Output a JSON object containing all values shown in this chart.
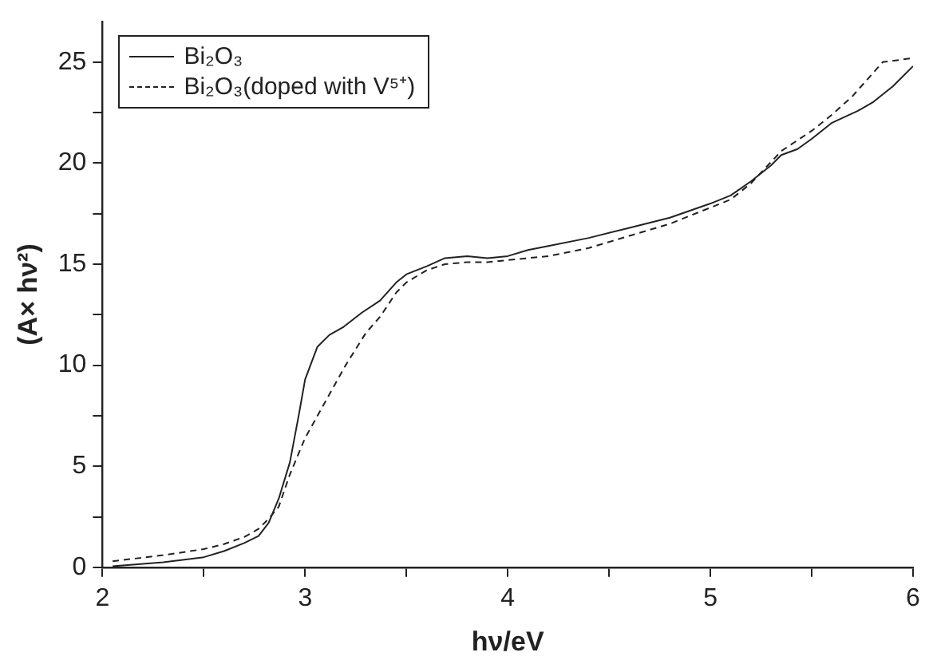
{
  "chart_data": {
    "type": "line",
    "xlabel": "hν/eV",
    "ylabel": "(A× hν²)",
    "xlim": [
      2,
      6
    ],
    "ylim": [
      0,
      27
    ],
    "xticks": [
      2,
      {
        "value": 2.5,
        "label": null
      },
      3,
      {
        "value": 3.5,
        "label": null
      },
      4,
      {
        "value": 4.5,
        "label": null
      },
      5,
      {
        "value": 5.5,
        "label": null
      },
      6
    ],
    "yticks": [
      0,
      {
        "value": 2.5,
        "label": null
      },
      5,
      {
        "value": 7.5,
        "label": null
      },
      10,
      {
        "value": 12.5,
        "label": null
      },
      15,
      {
        "value": 17.5,
        "label": null
      },
      20,
      {
        "value": 22.5,
        "label": null
      },
      25
    ],
    "grid": false,
    "legend": "top left",
    "marker": "none",
    "series": [
      {
        "name": "Bi₂O₃",
        "color": "#222222",
        "line_style": "solid",
        "x": [
          2.05,
          2.3,
          2.5,
          2.6,
          2.7,
          2.77,
          2.82,
          2.87,
          2.925,
          2.97,
          3.0,
          3.06,
          3.12,
          3.19,
          3.28,
          3.37,
          3.45,
          3.5,
          3.6,
          3.69,
          3.8,
          3.9,
          4.0,
          4.1,
          4.2,
          4.4,
          4.6,
          4.8,
          5.0,
          5.1,
          5.2,
          5.3,
          5.35,
          5.43,
          5.5,
          5.6,
          5.73,
          5.8,
          5.9,
          6.0
        ],
        "values": [
          0.05,
          0.25,
          0.5,
          0.8,
          1.2,
          1.55,
          2.2,
          3.4,
          5.2,
          7.6,
          9.3,
          10.9,
          11.5,
          11.9,
          12.6,
          13.2,
          14.1,
          14.5,
          14.9,
          15.3,
          15.4,
          15.3,
          15.4,
          15.7,
          15.9,
          16.3,
          16.8,
          17.3,
          18.0,
          18.4,
          19.1,
          19.9,
          20.4,
          20.7,
          21.2,
          22.0,
          22.6,
          23.0,
          23.8,
          24.8
        ]
      },
      {
        "name": "Bi₂O₃(doped with V⁵⁺)",
        "color": "#222222",
        "line_style": "dashed",
        "x": [
          2.05,
          2.3,
          2.5,
          2.6,
          2.7,
          2.77,
          2.82,
          2.87,
          2.925,
          3.0,
          3.1,
          3.2,
          3.3,
          3.37,
          3.45,
          3.5,
          3.6,
          3.69,
          3.8,
          3.9,
          4.0,
          4.2,
          4.4,
          4.6,
          4.8,
          5.0,
          5.1,
          5.2,
          5.35,
          5.5,
          5.6,
          5.7,
          5.85,
          6.0
        ],
        "values": [
          0.3,
          0.6,
          0.9,
          1.15,
          1.5,
          1.9,
          2.4,
          3.0,
          4.6,
          6.4,
          8.2,
          10.0,
          11.6,
          12.4,
          13.6,
          14.1,
          14.7,
          15.0,
          15.1,
          15.1,
          15.2,
          15.4,
          15.8,
          16.4,
          17.0,
          17.8,
          18.2,
          19.0,
          20.6,
          21.6,
          22.4,
          23.3,
          25.0,
          25.2
        ]
      }
    ]
  }
}
